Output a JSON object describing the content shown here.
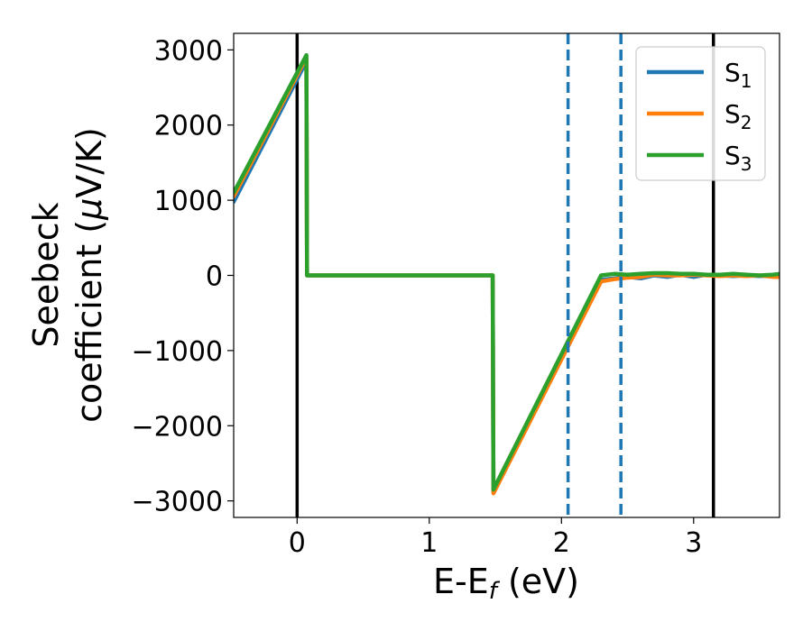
{
  "chart_data": {
    "type": "line",
    "xlabel": {
      "main": "E-E",
      "sub": "f",
      "rest": " (eV)"
    },
    "ylabel": {
      "line1": "Seebeck",
      "line2": "coefficient  (",
      "mu": "μ",
      "line2_rest": "V/K)"
    },
    "xlim": [
      -0.48,
      3.65
    ],
    "ylim": [
      -3220,
      3220
    ],
    "xticks": [
      0,
      1,
      2,
      3
    ],
    "xtick_labels": [
      "0",
      "1",
      "2",
      "3"
    ],
    "yticks": [
      3000,
      2000,
      1000,
      0,
      -1000,
      -2000,
      -3000
    ],
    "ytick_labels": [
      "3000",
      "2000",
      "1000",
      "0",
      "−1000",
      "−2000",
      "−3000"
    ],
    "vlines_solid": [
      0,
      3.15
    ],
    "vlines_dashed": [
      2.05,
      2.45
    ],
    "vline_colors": {
      "solid": "#000000",
      "dashed": "#1f77b4"
    },
    "grid": false,
    "legend_position": "top-right",
    "series": [
      {
        "name": "S",
        "name_sub": "1",
        "color": "#1f77b4",
        "x": [
          -0.48,
          0.07,
          0.075,
          1.48,
          1.485,
          2.3,
          2.4,
          2.5,
          2.6,
          2.7,
          2.8,
          2.9,
          3.0,
          3.1,
          3.2,
          3.3,
          3.4,
          3.5,
          3.6,
          3.65
        ],
        "y": [
          980,
          2850,
          0,
          0,
          -2880,
          -60,
          -40,
          -20,
          -40,
          0,
          -20,
          10,
          -20,
          10,
          0,
          -10,
          0,
          -10,
          0,
          0
        ]
      },
      {
        "name": "S",
        "name_sub": "2",
        "color": "#ff7f0e",
        "x": [
          -0.48,
          0.07,
          0.075,
          1.48,
          1.485,
          2.3,
          2.4,
          2.5,
          2.6,
          2.7,
          2.8,
          2.9,
          3.0,
          3.1,
          3.2,
          3.3,
          3.4,
          3.5,
          3.6,
          3.65
        ],
        "y": [
          1050,
          2900,
          0,
          0,
          -2900,
          -80,
          -50,
          -30,
          -20,
          10,
          0,
          0,
          10,
          0,
          -10,
          0,
          -10,
          0,
          -20,
          -20
        ]
      },
      {
        "name": "S",
        "name_sub": "3",
        "color": "#2ca02c",
        "x": [
          -0.48,
          0.07,
          0.075,
          1.48,
          1.485,
          2.3,
          2.4,
          2.5,
          2.6,
          2.7,
          2.8,
          2.9,
          3.0,
          3.1,
          3.2,
          3.3,
          3.4,
          3.5,
          3.6,
          3.65
        ],
        "y": [
          1100,
          2930,
          0,
          0,
          -2850,
          0,
          20,
          10,
          20,
          30,
          30,
          20,
          20,
          10,
          10,
          20,
          10,
          0,
          10,
          20
        ]
      }
    ]
  }
}
